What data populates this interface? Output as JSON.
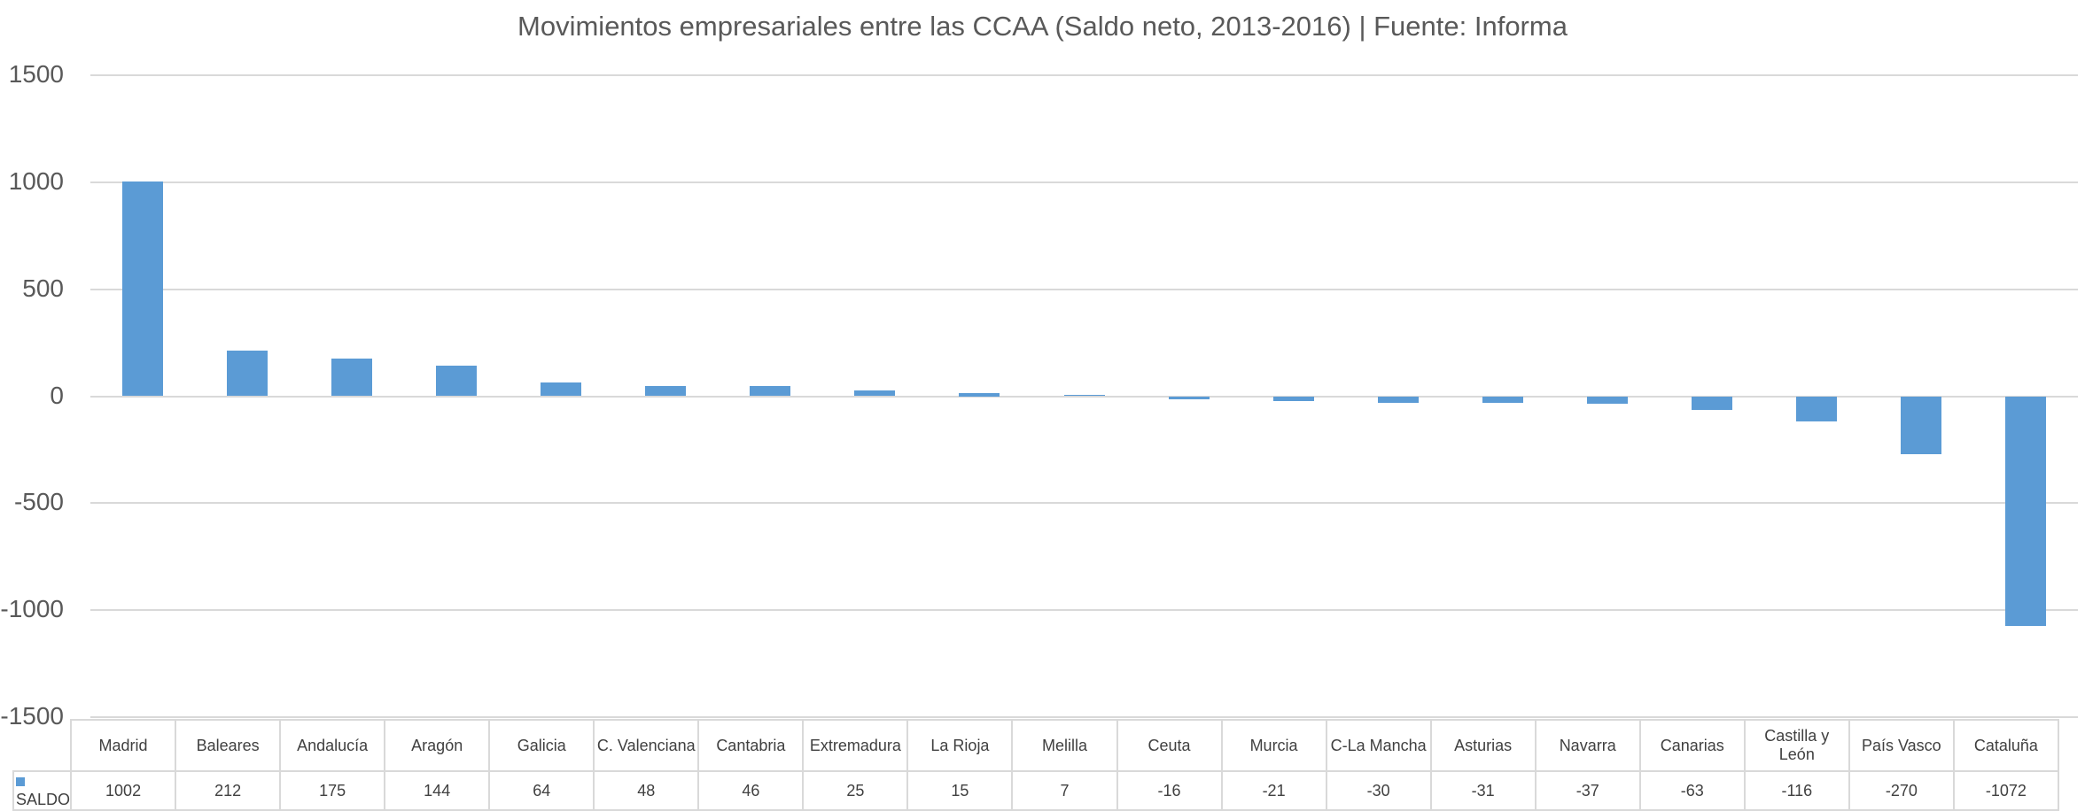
{
  "chart_data": {
    "type": "bar",
    "title": "Movimientos empresariales entre las CCAA (Saldo neto, 2013-2016) | Fuente: Informa",
    "xlabel": "",
    "ylabel": "",
    "ylim": [
      -1500,
      1500
    ],
    "yticks": [
      "1500",
      "1000",
      "500",
      "0",
      "-500",
      "-1000",
      "-1500"
    ],
    "grid": true,
    "legend_position": "data-table",
    "categories": [
      "Madrid",
      "Baleares",
      "Andalucía",
      "Aragón",
      "Galicia",
      "C. Valenciana",
      "Cantabria",
      "Extremadura",
      "La Rioja",
      "Melilla",
      "Ceuta",
      "Murcia",
      "C-La Mancha",
      "Asturias",
      "Navarra",
      "Canarias",
      "Castilla y León",
      "País Vasco",
      "Cataluña"
    ],
    "series": [
      {
        "name": "SALDO",
        "color": "#5b9bd5",
        "values": [
          1002,
          212,
          175,
          144,
          64,
          48,
          46,
          25,
          15,
          7,
          -16,
          -21,
          -30,
          -31,
          -37,
          -63,
          -116,
          -270,
          -1072
        ]
      }
    ]
  },
  "title": "Movimientos empresariales entre las CCAA (Saldo neto, 2013-2016) | Fuente: Informa",
  "yticks": [
    "1500",
    "1000",
    "500",
    "0",
    "-500",
    "-1000",
    "-1500"
  ],
  "table": {
    "series_label": "SALDO",
    "headers": [
      "Madrid",
      "Baleares",
      "Andalucía",
      "Aragón",
      "Galicia",
      "C. Valenciana",
      "Cantabria",
      "Extremadura",
      "La Rioja",
      "Melilla",
      "Ceuta",
      "Murcia",
      "C-La Mancha",
      "Asturias",
      "Navarra",
      "Canarias",
      "Castilla y León",
      "País Vasco",
      "Cataluña"
    ],
    "values": [
      "1002",
      "212",
      "175",
      "144",
      "64",
      "48",
      "46",
      "25",
      "15",
      "7",
      "-16",
      "-21",
      "-30",
      "-31",
      "-37",
      "-63",
      "-116",
      "-270",
      "-1072"
    ]
  }
}
